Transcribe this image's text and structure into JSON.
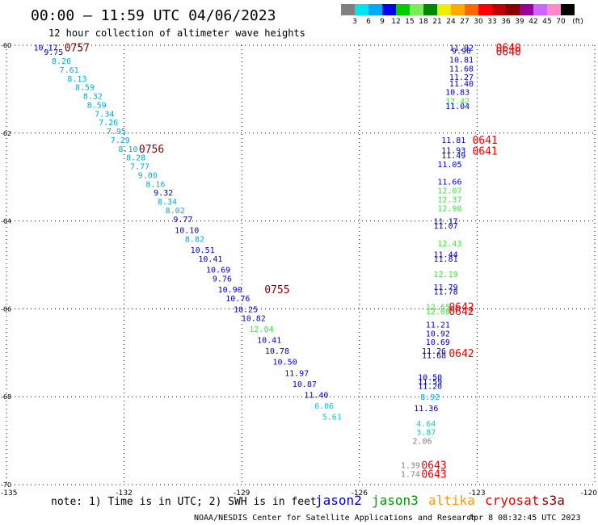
{
  "chart_data": {
    "type": "scatter",
    "title": "00:00 – 11:59 UTC 04/06/2023",
    "subtitle": "12 hour collection of altimeter wave heights",
    "xlim": [
      -135,
      -120
    ],
    "ylim": [
      -70,
      -60
    ],
    "grid": true,
    "x_ticks": [
      {
        "value": -135,
        "label": "-135"
      },
      {
        "value": -132,
        "label": "-132"
      },
      {
        "value": -129,
        "label": "-129"
      },
      {
        "value": -126,
        "label": "-126"
      },
      {
        "value": -123,
        "label": "-123"
      },
      {
        "value": -120,
        "label": "-120"
      }
    ],
    "y_ticks": [
      {
        "value": -60,
        "label": "-60"
      },
      {
        "value": -62,
        "label": "-62"
      },
      {
        "value": -64,
        "label": "-64"
      },
      {
        "value": -66,
        "label": "-66"
      },
      {
        "value": -68,
        "label": "-68"
      },
      {
        "value": -70,
        "label": "-70"
      }
    ],
    "color_scale": {
      "labels": [
        "3",
        "6",
        "9",
        "12",
        "15",
        "18",
        "21",
        "24",
        "27",
        "30",
        "33",
        "36",
        "39",
        "42",
        "45",
        "70"
      ],
      "unit": "(ft)",
      "colors": [
        "#808080",
        "#00e5ee",
        "#00a8ff",
        "#0000ee",
        "#00cc00",
        "#77ee55",
        "#008800",
        "#eeee00",
        "#ffaa00",
        "#ff6600",
        "#ff0000",
        "#bb0000",
        "#880000",
        "#990099",
        "#cc66ff",
        "#ff88cc",
        "#000000"
      ]
    },
    "series": [
      {
        "name": "jason2",
        "points": []
      },
      {
        "name": "jason3",
        "points": []
      },
      {
        "name": "altika",
        "points": []
      },
      {
        "name": "cryosat",
        "points": [
          {
            "x": -134.0,
            "y": -60.05,
            "v": 10.17,
            "c": "#0000cc"
          },
          {
            "x": -133.8,
            "y": -60.15,
            "v": 9.75,
            "c": "#0000cc"
          },
          {
            "x": -133.6,
            "y": -60.35,
            "v": 8.26,
            "c": "#00aadd"
          },
          {
            "x": -133.4,
            "y": -60.55,
            "v": 7.61,
            "c": "#00aadd"
          },
          {
            "x": -133.2,
            "y": -60.75,
            "v": 8.13,
            "c": "#00aadd"
          },
          {
            "x": -133.0,
            "y": -60.95,
            "v": 8.59,
            "c": "#00aadd"
          },
          {
            "x": -132.8,
            "y": -61.15,
            "v": 8.32,
            "c": "#00aadd"
          },
          {
            "x": -132.7,
            "y": -61.35,
            "v": 8.59,
            "c": "#00aadd"
          },
          {
            "x": -132.5,
            "y": -61.55,
            "v": 7.34,
            "c": "#00aadd"
          },
          {
            "x": -132.4,
            "y": -61.75,
            "v": 7.26,
            "c": "#00aadd"
          },
          {
            "x": -132.2,
            "y": -61.95,
            "v": 7.95,
            "c": "#00aadd"
          },
          {
            "x": -132.1,
            "y": -62.15,
            "v": 7.29,
            "c": "#00aadd"
          },
          {
            "x": -131.9,
            "y": -62.35,
            "v": 8.1,
            "c": "#00aadd"
          },
          {
            "x": -131.7,
            "y": -62.55,
            "v": 8.28,
            "c": "#00aadd"
          },
          {
            "x": -131.6,
            "y": -62.75,
            "v": 7.77,
            "c": "#00aadd"
          },
          {
            "x": -131.4,
            "y": -62.95,
            "v": 9.0,
            "c": "#00aadd"
          },
          {
            "x": -131.2,
            "y": -63.15,
            "v": 8.16,
            "c": "#00aadd"
          },
          {
            "x": -131.0,
            "y": -63.35,
            "v": 9.32,
            "c": "#0000cc"
          },
          {
            "x": -130.9,
            "y": -63.55,
            "v": 8.34,
            "c": "#00aadd"
          },
          {
            "x": -130.7,
            "y": -63.75,
            "v": 8.02,
            "c": "#00aadd"
          },
          {
            "x": -130.5,
            "y": -63.95,
            "v": 9.77,
            "c": "#0000cc"
          },
          {
            "x": -130.4,
            "y": -64.2,
            "v": 10.1,
            "c": "#0000cc"
          },
          {
            "x": -130.2,
            "y": -64.4,
            "v": 8.82,
            "c": "#00aadd"
          },
          {
            "x": -130.0,
            "y": -64.65,
            "v": 10.51,
            "c": "#0000cc"
          },
          {
            "x": -129.8,
            "y": -64.85,
            "v": 10.41,
            "c": "#0000cc"
          },
          {
            "x": -129.6,
            "y": -65.1,
            "v": 10.69,
            "c": "#0000cc"
          },
          {
            "x": -129.5,
            "y": -65.3,
            "v": 9.76,
            "c": "#0000cc"
          },
          {
            "x": -129.3,
            "y": -65.55,
            "v": 10.9,
            "c": "#0000cc"
          },
          {
            "x": -129.1,
            "y": -65.75,
            "v": 10.76,
            "c": "#0000cc"
          },
          {
            "x": -128.9,
            "y": -66.0,
            "v": 10.25,
            "c": "#0000cc"
          },
          {
            "x": -128.7,
            "y": -66.2,
            "v": 10.82,
            "c": "#0000cc"
          },
          {
            "x": -128.5,
            "y": -66.45,
            "v": 12.04,
            "c": "#44dd44"
          },
          {
            "x": -128.3,
            "y": -66.7,
            "v": 10.41,
            "c": "#0000cc"
          },
          {
            "x": -128.1,
            "y": -66.95,
            "v": 10.78,
            "c": "#0000cc"
          },
          {
            "x": -127.9,
            "y": -67.2,
            "v": 10.5,
            "c": "#0000cc"
          },
          {
            "x": -127.6,
            "y": -67.45,
            "v": 11.97,
            "c": "#0000cc"
          },
          {
            "x": -127.4,
            "y": -67.7,
            "v": 10.87,
            "c": "#0000cc"
          },
          {
            "x": -127.1,
            "y": -67.95,
            "v": 11.4,
            "c": "#0000cc"
          },
          {
            "x": -126.9,
            "y": -68.2,
            "v": 6.06,
            "c": "#00ccdd"
          },
          {
            "x": -126.7,
            "y": -68.45,
            "v": 5.61,
            "c": "#00ccdd"
          },
          {
            "x": -123.4,
            "y": -60.05,
            "v": 11.92,
            "c": "#0000cc"
          },
          {
            "x": -123.4,
            "y": -60.12,
            "v": 9.96,
            "c": "#0000cc"
          },
          {
            "x": -123.4,
            "y": -60.32,
            "v": 10.81,
            "c": "#0000cc"
          },
          {
            "x": -123.4,
            "y": -60.52,
            "v": 11.68,
            "c": "#0000cc"
          },
          {
            "x": -123.4,
            "y": -60.72,
            "v": 11.27,
            "c": "#0000cc"
          },
          {
            "x": -123.4,
            "y": -60.86,
            "v": 11.4,
            "c": "#0000cc"
          },
          {
            "x": -123.5,
            "y": -61.06,
            "v": 10.83,
            "c": "#0000cc"
          },
          {
            "x": -123.5,
            "y": -61.26,
            "v": 12.42,
            "c": "#44dd44"
          },
          {
            "x": -123.5,
            "y": -61.38,
            "v": 11.04,
            "c": "#0000cc"
          },
          {
            "x": -123.6,
            "y": -62.15,
            "v": 11.81,
            "c": "#0000cc"
          },
          {
            "x": -123.6,
            "y": -62.38,
            "v": 11.93,
            "c": "#0000cc"
          },
          {
            "x": -123.6,
            "y": -62.5,
            "v": 11.49,
            "c": "#0000cc"
          },
          {
            "x": -123.7,
            "y": -62.7,
            "v": 11.05,
            "c": "#0000cc"
          },
          {
            "x": -123.7,
            "y": -63.1,
            "v": 11.66,
            "c": "#0000cc"
          },
          {
            "x": -123.7,
            "y": -63.3,
            "v": 12.07,
            "c": "#44dd44"
          },
          {
            "x": -123.7,
            "y": -63.5,
            "v": 12.37,
            "c": "#44dd44"
          },
          {
            "x": -123.7,
            "y": -63.7,
            "v": 12.98,
            "c": "#44dd44"
          },
          {
            "x": -123.8,
            "y": -64.0,
            "v": 11.17,
            "c": "#0000cc"
          },
          {
            "x": -123.8,
            "y": -64.1,
            "v": 11.07,
            "c": "#0000cc"
          },
          {
            "x": -123.7,
            "y": -64.5,
            "v": 12.43,
            "c": "#44dd44"
          },
          {
            "x": -123.8,
            "y": -64.75,
            "v": 11.44,
            "c": "#0000cc"
          },
          {
            "x": -123.8,
            "y": -64.85,
            "v": 11.81,
            "c": "#0000cc"
          },
          {
            "x": -123.8,
            "y": -65.2,
            "v": 12.19,
            "c": "#44dd44"
          },
          {
            "x": -123.8,
            "y": -65.5,
            "v": 11.79,
            "c": "#0000cc"
          },
          {
            "x": -123.8,
            "y": -65.6,
            "v": 11.78,
            "c": "#0000cc"
          },
          {
            "x": -124.0,
            "y": -65.95,
            "v": 12.65,
            "c": "#44dd44"
          },
          {
            "x": -124.0,
            "y": -66.05,
            "v": 12.08,
            "c": "#44dd44"
          },
          {
            "x": -124.0,
            "y": -66.35,
            "v": 11.21,
            "c": "#0000cc"
          },
          {
            "x": -124.0,
            "y": -66.55,
            "v": 10.92,
            "c": "#0000cc"
          },
          {
            "x": -124.0,
            "y": -66.75,
            "v": 10.69,
            "c": "#0000cc"
          },
          {
            "x": -124.1,
            "y": -66.95,
            "v": 11.26,
            "c": "#0000cc"
          },
          {
            "x": -124.1,
            "y": -67.05,
            "v": 11.68,
            "c": "#0000cc"
          },
          {
            "x": -124.2,
            "y": -67.55,
            "v": 10.5,
            "c": "#0000cc"
          },
          {
            "x": -124.2,
            "y": -67.65,
            "v": 11.59,
            "c": "#0000cc"
          },
          {
            "x": -124.2,
            "y": -67.75,
            "v": 11.2,
            "c": "#0000cc"
          },
          {
            "x": -124.2,
            "y": -68.0,
            "v": 8.92,
            "c": "#00aadd"
          },
          {
            "x": -124.3,
            "y": -68.25,
            "v": 11.36,
            "c": "#0000cc"
          },
          {
            "x": -124.3,
            "y": -68.6,
            "v": 4.64,
            "c": "#00ccdd"
          },
          {
            "x": -124.3,
            "y": -68.8,
            "v": 3.87,
            "c": "#00ccdd"
          },
          {
            "x": -124.4,
            "y": -69.0,
            "v": 2.06,
            "c": "#808080"
          },
          {
            "x": -124.7,
            "y": -69.55,
            "v": 1.39,
            "c": "#808080"
          },
          {
            "x": -124.7,
            "y": -69.75,
            "v": 1.74,
            "c": "#808080"
          }
        ]
      },
      {
        "name": "s3a",
        "points": []
      }
    ],
    "time_labels": [
      {
        "x": -133.2,
        "y": -60.05,
        "label": "0757",
        "c": "#880000"
      },
      {
        "x": -131.3,
        "y": -62.35,
        "label": "0756",
        "c": "#880000"
      },
      {
        "x": -128.1,
        "y": -65.55,
        "label": "0755",
        "c": "#880000"
      },
      {
        "x": -122.2,
        "y": -60.05,
        "label": "0640",
        "c": "#ee0000"
      },
      {
        "x": -122.2,
        "y": -60.14,
        "label": "0640",
        "c": "#ee0000"
      },
      {
        "x": -122.8,
        "y": -62.15,
        "label": "0641",
        "c": "#ee0000"
      },
      {
        "x": -122.8,
        "y": -62.4,
        "label": "0641",
        "c": "#ee0000"
      },
      {
        "x": -123.4,
        "y": -65.95,
        "label": "0642",
        "c": "#ee0000"
      },
      {
        "x": -123.4,
        "y": -66.05,
        "label": "0642",
        "c": "#ee0000"
      },
      {
        "x": -123.4,
        "y": -67.0,
        "label": "0642",
        "c": "#ee0000"
      },
      {
        "x": -124.1,
        "y": -69.55,
        "label": "0643",
        "c": "#ee0000"
      },
      {
        "x": -124.1,
        "y": -69.75,
        "label": "0643",
        "c": "#ee0000"
      }
    ],
    "note": "note: 1) Time is in UTC; 2) SWH is in feet",
    "legend": [
      {
        "name": "jason2",
        "color": "#0000cc"
      },
      {
        "name": "jason3",
        "color": "#009900"
      },
      {
        "name": "altika",
        "color": "#ff9900"
      },
      {
        "name": "cryosat",
        "color": "#ee0000"
      },
      {
        "name": "s3a",
        "color": "#880000"
      }
    ],
    "footer_left": "NOAA/NESDIS Center for Satellite Applications and Research",
    "footer_right": "Apr  8 08:32:45 UTC 2023"
  }
}
